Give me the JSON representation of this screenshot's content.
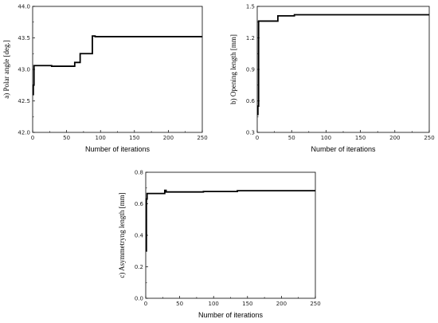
{
  "chart_data": [
    {
      "type": "line",
      "title": "",
      "xlabel": "Number of iterations",
      "ylabel": "a) Polar angle [deg.]",
      "xlim": [
        0,
        250
      ],
      "ylim": [
        42.0,
        44.0
      ],
      "xticks": [
        "0",
        "50",
        "100",
        "150",
        "200",
        "250"
      ],
      "yticks": [
        "42.0",
        "42.5",
        "43.0",
        "43.5",
        "44.0"
      ],
      "grid": false,
      "series": [
        {
          "line_color": "#000000",
          "x": [
            0,
            1,
            1,
            2,
            2,
            28,
            28,
            62,
            62,
            70,
            70,
            88,
            88,
            92,
            92,
            250
          ],
          "y": [
            42.6,
            42.6,
            42.75,
            42.75,
            43.06,
            43.06,
            43.05,
            43.05,
            43.11,
            43.11,
            43.25,
            43.25,
            43.53,
            43.53,
            43.52,
            43.52
          ]
        }
      ]
    },
    {
      "type": "line",
      "title": "",
      "xlabel": "Number of iterations",
      "ylabel": "b) Opening length [mm]",
      "xlim": [
        0,
        250
      ],
      "ylim": [
        0.3,
        1.5
      ],
      "xticks": [
        "0",
        "50",
        "100",
        "150",
        "200",
        "250"
      ],
      "yticks": [
        "0.3",
        "0.6",
        "0.9",
        "1.2",
        "1.5"
      ],
      "grid": false,
      "series": [
        {
          "line_color": "#000000",
          "x": [
            0,
            1,
            1,
            2,
            2,
            30,
            30,
            54,
            54,
            250
          ],
          "y": [
            0.47,
            0.47,
            0.55,
            0.55,
            1.36,
            1.36,
            1.41,
            1.41,
            1.42,
            1.42
          ]
        }
      ]
    },
    {
      "type": "line",
      "title": "",
      "xlabel": "Number of iterations",
      "ylabel": "c) Asymmetryng length [mm]",
      "xlim": [
        0,
        250
      ],
      "ylim": [
        0.0,
        0.8
      ],
      "xticks": [
        "0",
        "50",
        "100",
        "150",
        "200",
        "250"
      ],
      "yticks": [
        "0.0",
        "0.2",
        "0.4",
        "0.6",
        "0.8"
      ],
      "grid": false,
      "series": [
        {
          "line_color": "#000000",
          "x": [
            0,
            1,
            1,
            2,
            2,
            28,
            28,
            30,
            30,
            85,
            85,
            135,
            135,
            250
          ],
          "y": [
            0.3,
            0.3,
            0.63,
            0.63,
            0.665,
            0.665,
            0.685,
            0.685,
            0.675,
            0.675,
            0.678,
            0.678,
            0.683,
            0.683
          ]
        }
      ]
    }
  ]
}
